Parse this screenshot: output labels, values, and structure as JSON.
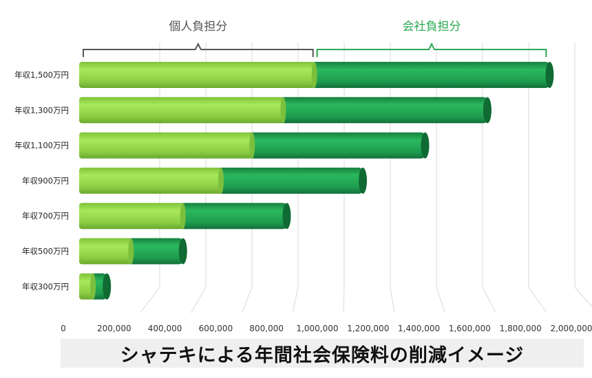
{
  "chart_data": {
    "type": "bar",
    "orientation": "horizontal",
    "stacked": true,
    "style": "3d-cylinder",
    "categories": [
      "年収1,500万円",
      "年収1,300万円",
      "年収1,100万円",
      "年収900万円",
      "年収700万円",
      "年収500万円",
      "年収300万円"
    ],
    "series": [
      {
        "name": "個人負担分",
        "values": [
          1020000,
          885000,
          750000,
          615000,
          450000,
          225000,
          60000
        ]
      },
      {
        "name": "会社負担分",
        "values": [
          1020000,
          885000,
          750000,
          615000,
          450000,
          225000,
          60000
        ]
      }
    ],
    "x_ticks": [
      "0",
      "200,000",
      "400,000",
      "600,000",
      "800,000",
      "1,000,000",
      "1,200,000",
      "1,400,000",
      "1,600,000",
      "1,800,000",
      "2,000,000"
    ],
    "xlim": [
      0,
      2000000
    ],
    "grid": true,
    "legend_placement": "top",
    "colors": {
      "personal": "#93d94a",
      "company": "#1f9e4f",
      "personal_bracket": "#555555",
      "company_bracket": "#2aa852",
      "grid": "#d9d9d9"
    }
  },
  "caption": "シャテキによる年間社会保険料の削減イメージ"
}
